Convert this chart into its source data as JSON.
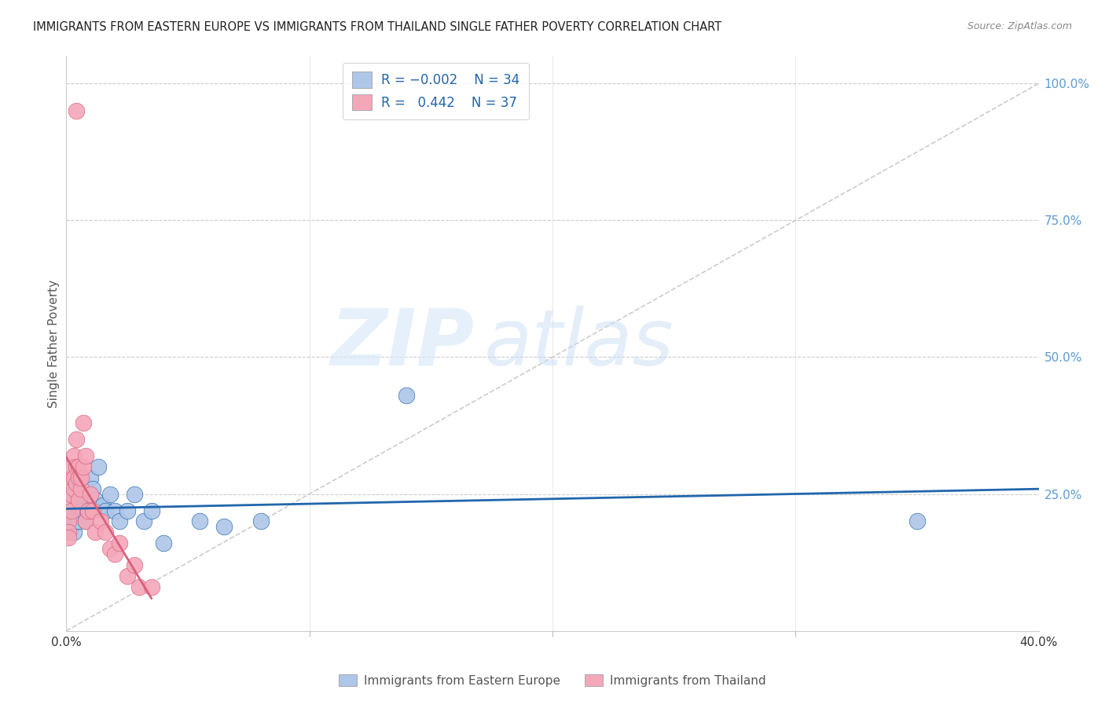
{
  "title": "IMMIGRANTS FROM EASTERN EUROPE VS IMMIGRANTS FROM THAILAND SINGLE FATHER POVERTY CORRELATION CHART",
  "source": "Source: ZipAtlas.com",
  "ylabel": "Single Father Poverty",
  "right_yticks": [
    "100.0%",
    "75.0%",
    "50.0%",
    "25.0%"
  ],
  "right_ytick_vals": [
    1.0,
    0.75,
    0.5,
    0.25
  ],
  "legend_label_blue": "Immigrants from Eastern Europe",
  "legend_label_pink": "Immigrants from Thailand",
  "R_blue": "-0.002",
  "N_blue": "34",
  "R_pink": "0.442",
  "N_pink": "37",
  "blue_color": "#aec6e8",
  "pink_color": "#f4a7b9",
  "line_blue_color": "#2166ac",
  "line_pink_color": "#d9607a",
  "diagonal_color": "#cccccc",
  "watermark_zip": "ZIP",
  "watermark_atlas": "atlas",
  "xlim": [
    0.0,
    0.4
  ],
  "ylim": [
    0.0,
    1.05
  ],
  "blue_x": [
    0.001,
    0.001,
    0.002,
    0.002,
    0.003,
    0.003,
    0.004,
    0.004,
    0.005,
    0.005,
    0.006,
    0.006,
    0.007,
    0.008,
    0.009,
    0.01,
    0.011,
    0.012,
    0.013,
    0.015,
    0.016,
    0.018,
    0.02,
    0.022,
    0.025,
    0.028,
    0.032,
    0.035,
    0.04,
    0.055,
    0.065,
    0.08,
    0.14,
    0.35
  ],
  "blue_y": [
    0.2,
    0.21,
    0.19,
    0.22,
    0.2,
    0.18,
    0.21,
    0.2,
    0.2,
    0.23,
    0.28,
    0.25,
    0.22,
    0.2,
    0.22,
    0.28,
    0.26,
    0.24,
    0.3,
    0.23,
    0.22,
    0.25,
    0.22,
    0.2,
    0.22,
    0.25,
    0.2,
    0.22,
    0.16,
    0.2,
    0.19,
    0.2,
    0.43,
    0.2
  ],
  "pink_x": [
    0.001,
    0.001,
    0.001,
    0.001,
    0.002,
    0.002,
    0.002,
    0.002,
    0.003,
    0.003,
    0.003,
    0.004,
    0.004,
    0.004,
    0.005,
    0.005,
    0.005,
    0.006,
    0.006,
    0.007,
    0.007,
    0.008,
    0.008,
    0.009,
    0.01,
    0.011,
    0.012,
    0.014,
    0.016,
    0.018,
    0.02,
    0.022,
    0.025,
    0.028,
    0.03,
    0.035,
    0.004
  ],
  "pink_y": [
    0.2,
    0.23,
    0.18,
    0.17,
    0.22,
    0.25,
    0.28,
    0.3,
    0.26,
    0.28,
    0.32,
    0.3,
    0.35,
    0.27,
    0.24,
    0.3,
    0.28,
    0.26,
    0.28,
    0.3,
    0.38,
    0.32,
    0.2,
    0.22,
    0.25,
    0.22,
    0.18,
    0.2,
    0.18,
    0.15,
    0.14,
    0.16,
    0.1,
    0.12,
    0.08,
    0.08,
    0.95
  ]
}
